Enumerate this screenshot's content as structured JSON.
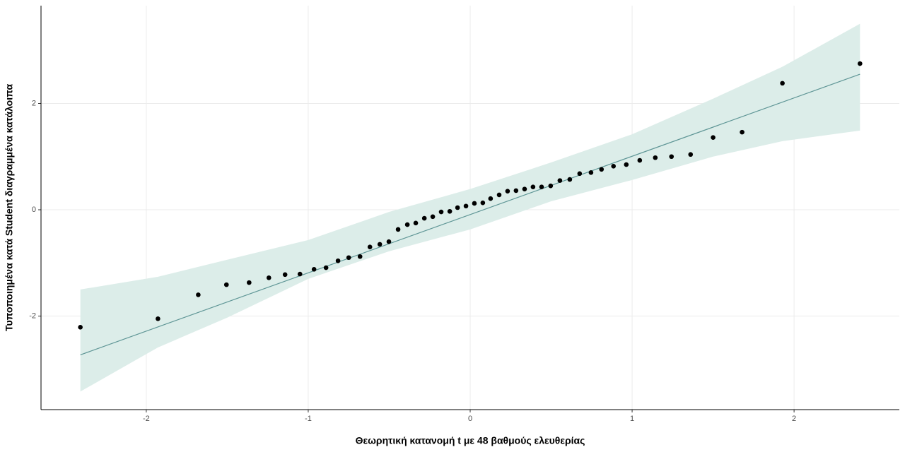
{
  "chart_data": {
    "type": "qq",
    "x_label": "Θεωρητική κατανομή t με 48 βαθμούς ελευθερίας",
    "y_label": "Τυποποιημένα κατά Student διαγραμμένα κατάλοιπα",
    "xlim": [
      -2.65,
      2.65
    ],
    "ylim": [
      -3.76,
      3.84
    ],
    "xticks": [
      -2,
      -1,
      0,
      1,
      2
    ],
    "yticks": [
      -2,
      0,
      2
    ],
    "grid": true,
    "points": {
      "color": "#000000",
      "x": [
        -2.407,
        -1.928,
        -1.679,
        -1.505,
        -1.365,
        -1.243,
        -1.143,
        -1.051,
        -0.964,
        -0.89,
        -0.816,
        -0.75,
        -0.68,
        -0.619,
        -0.558,
        -0.502,
        -0.445,
        -0.388,
        -0.336,
        -0.283,
        -0.231,
        -0.179,
        -0.126,
        -0.078,
        -0.026,
        0.026,
        0.078,
        0.126,
        0.179,
        0.231,
        0.283,
        0.336,
        0.388,
        0.441,
        0.497,
        0.554,
        0.615,
        0.676,
        0.746,
        0.811,
        0.885,
        0.964,
        1.047,
        1.143,
        1.243,
        1.361,
        1.5,
        1.679,
        1.928,
        2.407
      ],
      "y": [
        -2.21,
        -2.05,
        -1.6,
        -1.41,
        -1.37,
        -1.28,
        -1.22,
        -1.21,
        -1.12,
        -1.09,
        -0.96,
        -0.9,
        -0.88,
        -0.7,
        -0.65,
        -0.6,
        -0.37,
        -0.28,
        -0.25,
        -0.16,
        -0.13,
        -0.04,
        -0.03,
        0.04,
        0.07,
        0.12,
        0.13,
        0.21,
        0.28,
        0.35,
        0.36,
        0.39,
        0.43,
        0.43,
        0.45,
        0.55,
        0.57,
        0.68,
        0.7,
        0.76,
        0.82,
        0.85,
        0.93,
        0.98,
        1.0,
        1.04,
        1.36,
        1.46,
        2.38,
        2.75
      ]
    },
    "reference_line": {
      "color": "#5f9696",
      "x": [
        -2.407,
        2.407
      ],
      "y": [
        -2.73,
        2.55
      ]
    },
    "band": {
      "color": "#dcede9",
      "x": [
        -2.407,
        -1.928,
        -1.5,
        -1,
        -0.5,
        0,
        0.5,
        1,
        1.5,
        1.928,
        2.407
      ],
      "upper": [
        -1.5,
        -1.26,
        -0.94,
        -0.57,
        -0.04,
        0.39,
        0.89,
        1.42,
        2.09,
        2.69,
        3.5
      ],
      "lower": [
        -3.42,
        -2.59,
        -2.03,
        -1.3,
        -0.78,
        -0.37,
        0.16,
        0.56,
        1.0,
        1.29,
        1.49
      ]
    }
  }
}
